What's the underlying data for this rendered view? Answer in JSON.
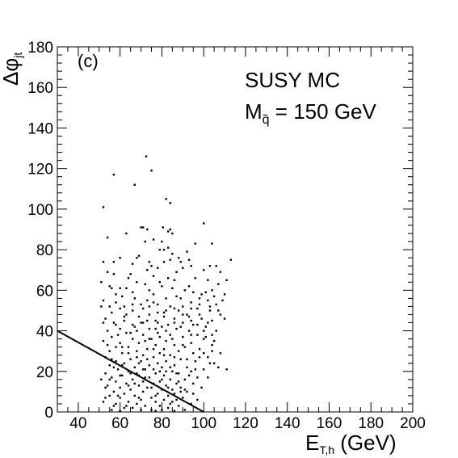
{
  "chart_data": {
    "type": "scatter",
    "title": "",
    "panel_label": "(c)",
    "xlabel": {
      "main": "E",
      "sub": "T,h",
      "unit": " (GeV)"
    },
    "ylabel": {
      "main": "Δφ",
      "sub": "jt"
    },
    "xlim": [
      30,
      200
    ],
    "ylim": [
      0,
      180
    ],
    "x_ticks": [
      40,
      60,
      80,
      100,
      120,
      140,
      160,
      180,
      200
    ],
    "y_ticks": [
      0,
      20,
      40,
      60,
      80,
      100,
      120,
      140,
      160,
      180
    ],
    "grid": false,
    "annotations": [
      {
        "line1": "SUSY MC"
      },
      {
        "line2_prefix": "M",
        "line2_sub": "q̃",
        "line2_suffix": " = 150 GeV"
      }
    ],
    "cut_line": {
      "x": [
        30,
        100
      ],
      "y": [
        40,
        0
      ]
    },
    "points": [
      [
        72.5,
        126
      ],
      [
        75,
        119
      ],
      [
        57,
        117
      ],
      [
        67,
        112
      ],
      [
        82,
        105
      ],
      [
        84,
        103
      ],
      [
        52,
        101
      ],
      [
        100,
        93
      ],
      [
        80.5,
        91
      ],
      [
        71,
        91
      ],
      [
        70,
        91
      ],
      [
        73,
        90
      ],
      [
        84,
        90
      ],
      [
        83,
        89
      ],
      [
        85,
        88
      ],
      [
        63,
        88
      ],
      [
        54,
        86
      ],
      [
        76,
        85
      ],
      [
        80,
        84
      ],
      [
        72,
        84
      ],
      [
        96,
        83
      ],
      [
        104,
        83
      ],
      [
        83,
        81
      ],
      [
        81,
        80
      ],
      [
        79,
        80
      ],
      [
        92,
        79
      ],
      [
        85,
        78
      ],
      [
        69,
        77
      ],
      [
        68,
        76
      ],
      [
        60,
        76
      ],
      [
        88,
        76
      ],
      [
        84,
        75
      ],
      [
        93,
        75
      ],
      [
        113,
        75
      ],
      [
        52,
        74
      ],
      [
        57,
        74
      ],
      [
        74,
        74
      ],
      [
        81,
        74
      ],
      [
        89,
        74
      ],
      [
        66,
        73
      ],
      [
        75,
        72
      ],
      [
        94,
        72
      ],
      [
        103,
        72
      ],
      [
        106,
        72
      ],
      [
        90,
        71
      ],
      [
        100,
        70
      ],
      [
        73,
        70
      ],
      [
        54,
        69
      ],
      [
        87,
        69
      ],
      [
        108,
        69
      ],
      [
        57,
        68
      ],
      [
        65,
        68
      ],
      [
        76,
        67
      ],
      [
        83,
        66
      ],
      [
        64,
        66
      ],
      [
        96,
        66
      ],
      [
        102,
        65
      ],
      [
        86,
        65
      ],
      [
        111,
        65
      ],
      [
        51,
        64
      ],
      [
        68,
        64
      ],
      [
        79,
        64
      ],
      [
        107,
        63
      ],
      [
        80,
        62
      ],
      [
        55,
        62
      ],
      [
        56,
        61
      ],
      [
        60,
        61
      ],
      [
        104,
        60
      ],
      [
        91,
        60
      ],
      [
        74,
        60
      ],
      [
        95,
        59
      ],
      [
        99,
        58
      ],
      [
        110,
        58
      ],
      [
        87,
        57
      ],
      [
        61,
        57
      ],
      [
        82,
        56
      ],
      [
        67,
        56
      ],
      [
        52,
        55
      ],
      [
        73,
        55
      ],
      [
        102,
        55
      ],
      [
        58,
        54
      ],
      [
        76,
        54
      ],
      [
        94,
        54
      ],
      [
        106,
        53
      ],
      [
        78,
        53
      ],
      [
        66,
        53
      ],
      [
        51,
        52
      ],
      [
        84,
        52
      ],
      [
        60,
        51
      ],
      [
        97,
        51
      ],
      [
        71,
        51
      ],
      [
        88,
        50
      ],
      [
        103,
        50
      ],
      [
        56,
        49
      ],
      [
        81,
        49
      ],
      [
        63,
        48
      ],
      [
        74,
        48
      ],
      [
        92,
        48
      ],
      [
        108,
        48
      ],
      [
        69,
        47
      ],
      [
        53,
        46
      ],
      [
        86,
        46
      ],
      [
        99,
        46
      ],
      [
        77,
        45
      ],
      [
        62,
        45
      ],
      [
        104,
        45
      ],
      [
        90,
        44
      ],
      [
        57,
        44
      ],
      [
        71,
        44
      ],
      [
        83,
        43
      ],
      [
        66,
        43
      ],
      [
        95,
        43
      ],
      [
        80,
        42
      ],
      [
        101,
        42
      ],
      [
        60,
        41
      ],
      [
        74,
        41
      ],
      [
        87,
        41
      ],
      [
        54,
        40
      ],
      [
        68,
        40
      ],
      [
        93,
        40
      ],
      [
        106,
        40
      ],
      [
        78,
        39
      ],
      [
        63,
        39
      ],
      [
        84,
        38
      ],
      [
        97,
        38
      ],
      [
        71,
        38
      ],
      [
        56,
        37
      ],
      [
        90,
        37
      ],
      [
        75,
        36
      ],
      [
        100,
        36
      ],
      [
        66,
        36
      ],
      [
        52,
        35
      ],
      [
        82,
        35
      ],
      [
        60,
        34
      ],
      [
        94,
        34
      ],
      [
        69,
        34
      ],
      [
        86,
        33
      ],
      [
        104,
        33
      ],
      [
        77,
        33
      ],
      [
        58,
        32
      ],
      [
        91,
        32
      ],
      [
        64,
        32
      ],
      [
        73,
        31
      ],
      [
        81,
        31
      ],
      [
        98,
        31
      ],
      [
        55,
        30
      ],
      [
        88,
        30
      ],
      [
        68,
        30
      ],
      [
        61,
        29
      ],
      [
        79,
        29
      ],
      [
        95,
        29
      ],
      [
        71,
        28
      ],
      [
        84,
        28
      ],
      [
        53,
        27
      ],
      [
        102,
        27
      ],
      [
        76,
        27
      ],
      [
        65,
        26
      ],
      [
        89,
        26
      ],
      [
        58,
        25
      ],
      [
        82,
        25
      ],
      [
        70,
        25
      ],
      [
        96,
        25
      ],
      [
        62,
        24
      ],
      [
        78,
        24
      ],
      [
        86,
        23
      ],
      [
        55,
        23
      ],
      [
        74,
        23
      ],
      [
        92,
        22
      ],
      [
        67,
        22
      ],
      [
        80,
        22
      ],
      [
        100,
        21
      ],
      [
        59,
        21
      ],
      [
        72,
        21
      ],
      [
        85,
        20
      ],
      [
        64,
        20
      ],
      [
        94,
        20
      ],
      [
        77,
        19
      ],
      [
        53,
        19
      ],
      [
        88,
        19
      ],
      [
        69,
        18
      ],
      [
        81,
        18
      ],
      [
        61,
        18
      ],
      [
        97,
        17
      ],
      [
        74,
        17
      ],
      [
        56,
        17
      ],
      [
        84,
        16
      ],
      [
        66,
        16
      ],
      [
        91,
        16
      ],
      [
        79,
        15
      ],
      [
        71,
        15
      ],
      [
        58,
        15
      ],
      [
        87,
        14
      ],
      [
        63,
        14
      ],
      [
        76,
        14
      ],
      [
        95,
        14
      ],
      [
        54,
        13
      ],
      [
        82,
        13
      ],
      [
        69,
        13
      ],
      [
        89,
        12
      ],
      [
        60,
        12
      ],
      [
        73,
        12
      ],
      [
        85,
        11
      ],
      [
        65,
        11
      ],
      [
        80,
        11
      ],
      [
        57,
        10
      ],
      [
        92,
        10
      ],
      [
        71,
        10
      ],
      [
        78,
        9
      ],
      [
        62,
        9
      ],
      [
        86,
        9
      ],
      [
        67,
        8
      ],
      [
        83,
        8
      ],
      [
        55,
        8
      ],
      [
        75,
        7
      ],
      [
        90,
        7
      ],
      [
        60,
        7
      ],
      [
        81,
        6
      ],
      [
        70,
        6
      ],
      [
        87,
        6
      ],
      [
        64,
        5
      ],
      [
        77,
        5
      ],
      [
        52,
        5
      ],
      [
        84,
        4
      ],
      [
        68,
        4
      ],
      [
        94,
        4
      ],
      [
        58,
        4
      ],
      [
        79,
        3
      ],
      [
        72,
        3
      ],
      [
        88,
        3
      ],
      [
        62,
        2
      ],
      [
        83,
        2
      ],
      [
        66,
        2
      ],
      [
        75,
        1
      ],
      [
        56,
        1
      ],
      [
        80,
        1
      ],
      [
        91,
        1
      ],
      [
        70,
        1
      ],
      [
        86,
        0.5
      ],
      [
        60,
        0.5
      ],
      [
        77,
        0.5
      ],
      [
        53,
        12
      ],
      [
        59,
        38
      ],
      [
        63,
        61
      ],
      [
        67,
        42
      ],
      [
        72,
        63
      ],
      [
        76,
        58
      ],
      [
        78,
        71
      ],
      [
        85,
        61
      ],
      [
        89,
        56
      ],
      [
        93,
        62
      ],
      [
        98,
        48
      ],
      [
        101,
        59
      ],
      [
        105,
        57
      ],
      [
        64,
        29
      ],
      [
        68,
        19
      ],
      [
        72,
        35
      ],
      [
        76,
        31
      ],
      [
        79,
        37
      ],
      [
        82,
        20
      ],
      [
        86,
        27
      ],
      [
        90,
        33
      ],
      [
        94,
        38
      ],
      [
        98,
        27
      ],
      [
        102,
        17
      ],
      [
        57,
        22
      ],
      [
        61,
        32
      ],
      [
        65,
        39
      ],
      [
        69,
        24
      ],
      [
        73,
        45
      ],
      [
        77,
        41
      ],
      [
        81,
        47
      ],
      [
        85,
        36
      ],
      [
        89,
        42
      ],
      [
        93,
        47
      ],
      [
        97,
        43
      ],
      [
        101,
        37
      ],
      [
        105,
        24
      ],
      [
        54,
        33
      ],
      [
        58,
        43
      ],
      [
        62,
        52
      ],
      [
        66,
        59
      ],
      [
        70,
        53
      ],
      [
        74,
        36
      ],
      [
        78,
        44
      ],
      [
        82,
        50
      ],
      [
        86,
        44
      ],
      [
        90,
        52
      ],
      [
        94,
        45
      ],
      [
        98,
        53
      ],
      [
        102,
        44
      ],
      [
        107,
        50
      ],
      [
        110,
        46
      ],
      [
        56,
        26
      ],
      [
        60,
        18
      ],
      [
        64,
        13
      ],
      [
        68,
        27
      ],
      [
        72,
        17
      ],
      [
        76,
        21
      ],
      [
        80,
        16
      ],
      [
        84,
        22
      ],
      [
        88,
        15
      ],
      [
        92,
        26
      ],
      [
        96,
        21
      ],
      [
        100,
        29
      ],
      [
        104,
        38
      ],
      [
        108,
        29
      ],
      [
        55,
        16
      ],
      [
        59,
        8
      ],
      [
        63,
        3
      ],
      [
        67,
        14
      ],
      [
        71,
        21
      ],
      [
        75,
        12
      ],
      [
        79,
        20
      ],
      [
        83,
        12
      ],
      [
        87,
        19
      ],
      [
        91,
        11
      ],
      [
        95,
        9
      ],
      [
        99,
        12
      ],
      [
        103,
        24
      ],
      [
        53,
        7
      ],
      [
        57,
        3
      ],
      [
        61,
        23
      ],
      [
        65,
        19
      ],
      [
        69,
        7
      ],
      [
        73,
        26
      ],
      [
        77,
        8
      ],
      [
        81,
        28
      ],
      [
        85,
        5
      ],
      [
        89,
        10
      ],
      [
        93,
        18
      ],
      [
        97,
        6
      ],
      [
        51,
        16
      ],
      [
        52,
        44
      ],
      [
        55,
        52
      ],
      [
        58,
        58
      ],
      [
        62,
        47
      ],
      [
        66,
        50
      ],
      [
        70,
        44
      ],
      [
        74,
        52
      ],
      [
        78,
        49
      ],
      [
        82,
        40
      ],
      [
        86,
        51
      ],
      [
        90,
        48
      ],
      [
        94,
        51
      ],
      [
        98,
        56
      ],
      [
        103,
        52
      ],
      [
        109,
        55
      ],
      [
        111,
        21
      ],
      [
        107,
        22
      ],
      [
        105,
        35
      ],
      [
        104,
        30
      ],
      [
        100,
        40
      ]
    ]
  }
}
